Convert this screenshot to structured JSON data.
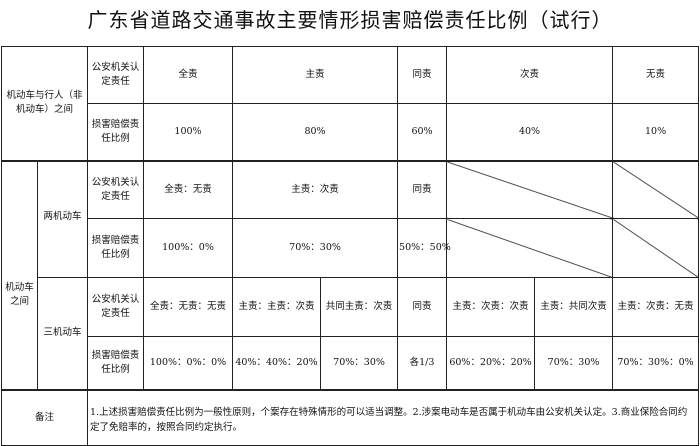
{
  "title": "广东省道路交通事故主要情形损害赔偿责任比例（试行）",
  "labels": {
    "police_determined": "公安机关认定责任",
    "compensation_ratio": "损害赔偿责任比例",
    "remarks": "备注"
  },
  "pedestrian": {
    "category": "机动车与行人（非机动车）之间",
    "responsibility": [
      "全责",
      "主责",
      "同责",
      "次责",
      "无责"
    ],
    "ratio": [
      "100%",
      "80%",
      "60%",
      "40%",
      "10%"
    ]
  },
  "vehicles": {
    "category": "机动车之间",
    "two": {
      "label": "两机动车",
      "responsibility": [
        "全责：无责",
        "主责：次责",
        "同责"
      ],
      "ratio": [
        "100%：0%",
        "70%：30%",
        "50%：50%"
      ]
    },
    "three": {
      "label": "三机动车",
      "responsibility": [
        "全责：无责：无责",
        "主责：主责：次责",
        "共同主责：次责",
        "同责",
        "主责：次责：次责",
        "主责：共同次责",
        "主责：次责：无责"
      ],
      "ratio": [
        "100%：0%：0%",
        "40%：40%：20%",
        "70%：30%",
        "各1/3",
        "60%：20%：20%",
        "70%：30%",
        "70%：30%：0%"
      ]
    }
  },
  "remarks_text": "1.上述损害赔偿责任比例为一般性原则，个案存在特殊情形的可以适当调整。2.涉案电动车是否属于机动车由公安机关认定。3.商业保险合同约定了免赔率的，按照合同约定执行。"
}
